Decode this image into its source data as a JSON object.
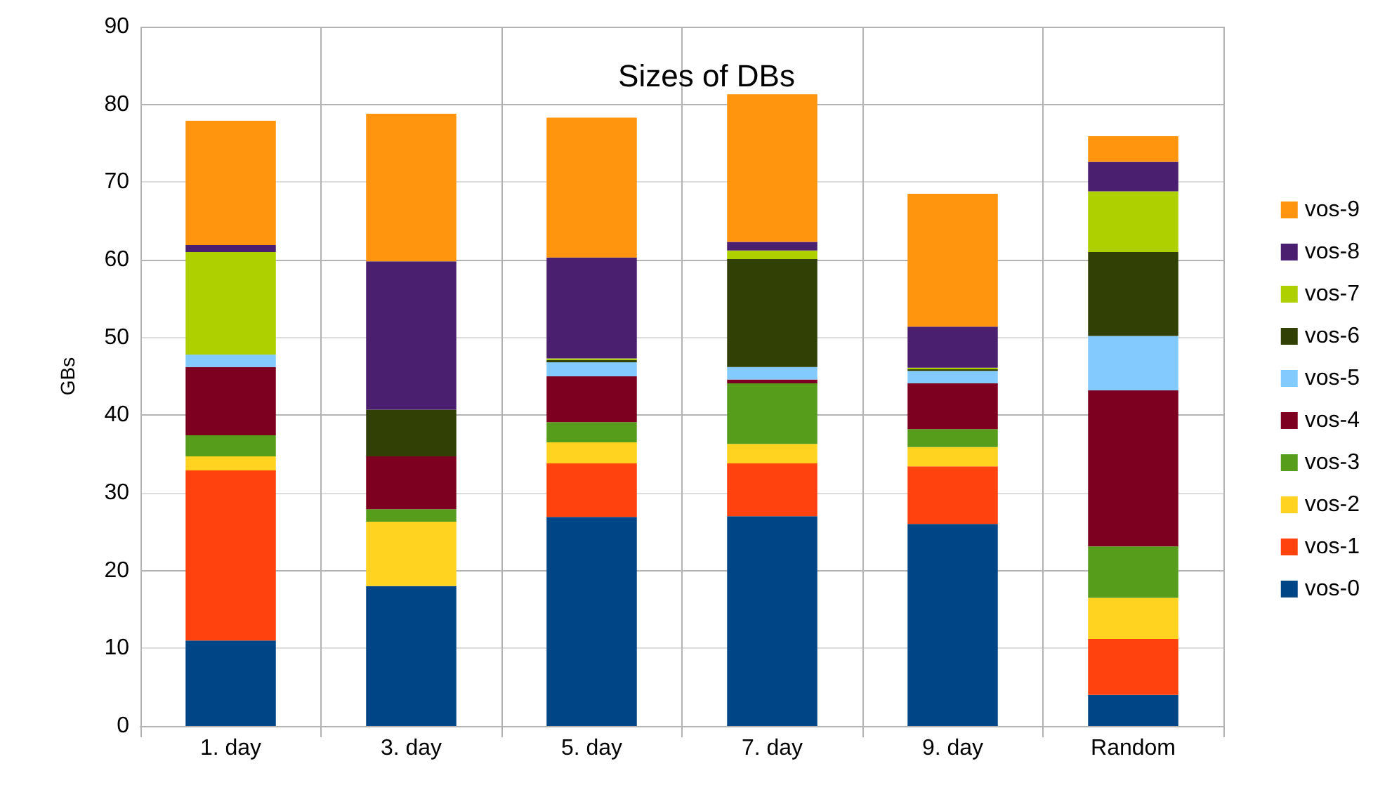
{
  "chart_data": {
    "type": "bar",
    "title": "Sizes of DBs",
    "ylabel": "GBs",
    "stacked": true,
    "categories": [
      "1. day",
      "3. day",
      "5. day",
      "7. day",
      "9. day",
      "Random"
    ],
    "series": [
      {
        "name": "vos-0",
        "color": "#004586",
        "values": [
          11,
          18,
          26.9,
          27,
          26,
          4
        ]
      },
      {
        "name": "vos-1",
        "color": "#ff420e",
        "values": [
          21.9,
          0,
          6.9,
          6.8,
          7.4,
          7.2
        ]
      },
      {
        "name": "vos-2",
        "color": "#ffd320",
        "values": [
          1.8,
          8.3,
          2.7,
          2.5,
          2.5,
          5.3
        ]
      },
      {
        "name": "vos-3",
        "color": "#579d1c",
        "values": [
          2.7,
          1.6,
          2.6,
          7.8,
          2.3,
          6.6
        ]
      },
      {
        "name": "vos-4",
        "color": "#7e0021",
        "values": [
          8.8,
          6.8,
          5.9,
          0.5,
          5.9,
          20.1
        ]
      },
      {
        "name": "vos-5",
        "color": "#83caff",
        "values": [
          1.6,
          0,
          1.8,
          1.6,
          1.6,
          7
        ]
      },
      {
        "name": "vos-6",
        "color": "#314004",
        "values": [
          0,
          6,
          0.3,
          13.9,
          0.2,
          10.8
        ]
      },
      {
        "name": "vos-7",
        "color": "#aecf00",
        "values": [
          13.2,
          0,
          0.2,
          1.1,
          0.2,
          7.8
        ]
      },
      {
        "name": "vos-8",
        "color": "#4b1f6f",
        "values": [
          0.9,
          19.1,
          13,
          1.1,
          5.3,
          3.8
        ]
      },
      {
        "name": "vos-9",
        "color": "#ff950e",
        "values": [
          16,
          19,
          18,
          19,
          17.1,
          3.3
        ]
      }
    ],
    "ylim": [
      0,
      90
    ],
    "yticks": [
      0,
      10,
      20,
      30,
      40,
      50,
      60,
      70,
      80,
      90
    ],
    "grid": true,
    "legend": "right"
  }
}
